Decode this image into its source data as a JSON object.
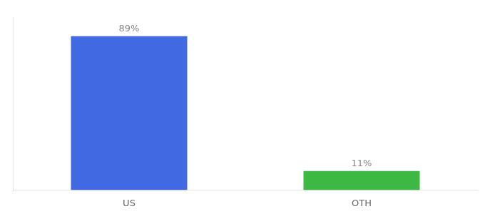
{
  "chart_data": {
    "type": "bar",
    "categories": [
      "US",
      "OTH"
    ],
    "values": [
      89,
      11
    ],
    "value_labels": [
      "89%",
      "11%"
    ],
    "colors": [
      "#4169e1",
      "#3cb843"
    ],
    "ylim": [
      0,
      100
    ],
    "data_labels": true,
    "grid": false,
    "tick_labels": "x"
  }
}
